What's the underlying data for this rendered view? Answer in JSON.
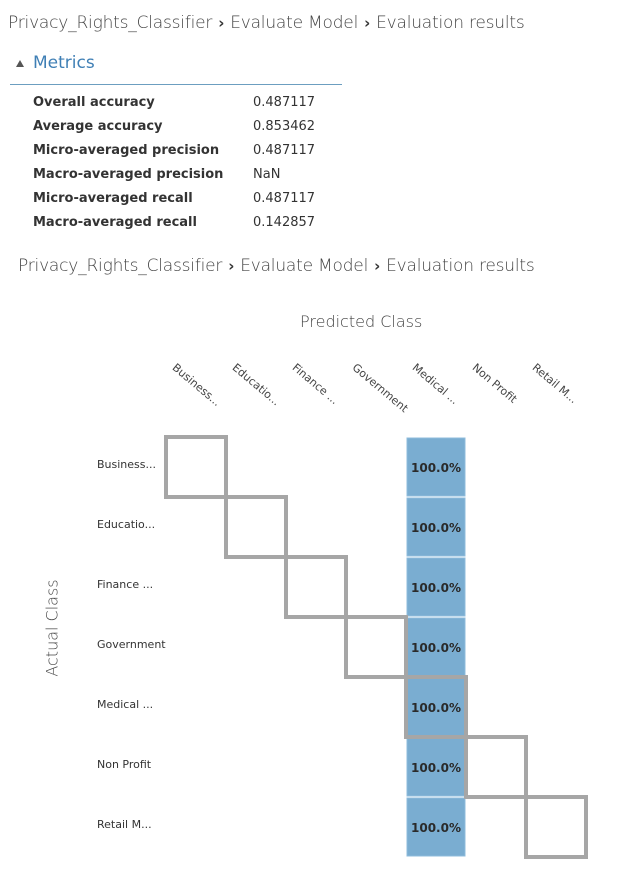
{
  "breadcrumb": [
    "Privacy_Rights_Classifier",
    "Evaluate Model",
    "Evaluation results"
  ],
  "metrics": {
    "title": "Metrics",
    "rows": [
      {
        "label": "Overall accuracy",
        "value": "0.487117"
      },
      {
        "label": "Average accuracy",
        "value": "0.853462"
      },
      {
        "label": "Micro-averaged precision",
        "value": "0.487117"
      },
      {
        "label": "Macro-averaged precision",
        "value": "NaN"
      },
      {
        "label": "Micro-averaged recall",
        "value": "0.487117"
      },
      {
        "label": "Macro-averaged recall",
        "value": "0.142857"
      }
    ]
  },
  "chart_data": {
    "type": "heatmap",
    "title": "",
    "xlabel": "Predicted Class",
    "ylabel": "Actual Class",
    "x_categories": [
      "Business...",
      "Educatio...",
      "Finance ...",
      "Government",
      "Medical ...",
      "Non Profit",
      "Retail M..."
    ],
    "y_categories": [
      "Business...",
      "Educatio...",
      "Finance ...",
      "Government",
      "Medical ...",
      "Non Profit",
      "Retail M..."
    ],
    "cells": [
      {
        "row": 0,
        "col": 4,
        "value": "100.0%"
      },
      {
        "row": 1,
        "col": 4,
        "value": "100.0%"
      },
      {
        "row": 2,
        "col": 4,
        "value": "100.0%"
      },
      {
        "row": 3,
        "col": 4,
        "value": "100.0%"
      },
      {
        "row": 4,
        "col": 4,
        "value": "100.0%"
      },
      {
        "row": 5,
        "col": 4,
        "value": "100.0%"
      },
      {
        "row": 6,
        "col": 4,
        "value": "100.0%"
      }
    ],
    "cell_color": "#7aadd1",
    "diagonal_color": "#a6a6a6"
  }
}
